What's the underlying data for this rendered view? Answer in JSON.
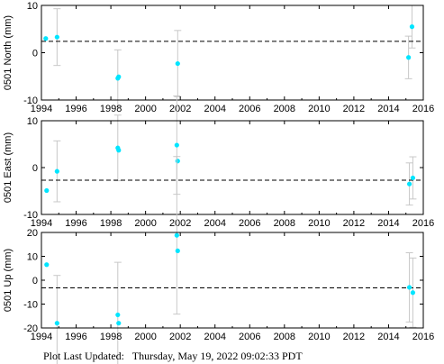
{
  "footer": {
    "label": "Plot Last Updated:",
    "timestamp": "Thursday, May 19, 2022 09:02:33 PDT"
  },
  "colors": {
    "point": "#00e5ff",
    "errorbar": "#c8c8c8",
    "reference": "#000000",
    "axis": "#000000"
  },
  "chart_data": [
    {
      "type": "scatter",
      "ylabel": "0501 North (mm)",
      "xlim": [
        1994,
        2016
      ],
      "ylim": [
        -10,
        10
      ],
      "xticks": [
        1994,
        1996,
        1998,
        2000,
        2002,
        2004,
        2006,
        2008,
        2010,
        2012,
        2014,
        2016
      ],
      "yticks": [
        -10,
        0,
        10
      ],
      "reference": 2.4,
      "points": [
        {
          "x": 1994.25,
          "y": 3.0,
          "err": 0
        },
        {
          "x": 1994.9,
          "y": 3.3,
          "err": 6.0
        },
        {
          "x": 1998.4,
          "y": -5.4,
          "err": 6.0
        },
        {
          "x": 1998.45,
          "y": -5.1,
          "err": 0
        },
        {
          "x": 2001.85,
          "y": -2.3,
          "err": 7.0
        },
        {
          "x": 2015.15,
          "y": -1.0,
          "err": 4.5
        },
        {
          "x": 2015.35,
          "y": 5.5,
          "err": 4.5
        }
      ]
    },
    {
      "type": "scatter",
      "ylabel": "0501 East (mm)",
      "xlim": [
        1994,
        2016
      ],
      "ylim": [
        -10,
        10
      ],
      "xticks": [
        1994,
        1996,
        1998,
        2000,
        2002,
        2004,
        2006,
        2008,
        2010,
        2012,
        2014,
        2016
      ],
      "yticks": [
        -10,
        0,
        10
      ],
      "reference": -2.7,
      "points": [
        {
          "x": 1994.3,
          "y": -4.9,
          "err": 0
        },
        {
          "x": 1994.9,
          "y": -0.8,
          "err": 6.5
        },
        {
          "x": 1998.4,
          "y": 4.2,
          "err": 7.0
        },
        {
          "x": 1998.45,
          "y": 3.7,
          "err": 0
        },
        {
          "x": 2001.8,
          "y": 4.8,
          "err": 10.5
        },
        {
          "x": 2001.85,
          "y": 1.4,
          "err": 0
        },
        {
          "x": 2015.2,
          "y": -3.5,
          "err": 4.5
        },
        {
          "x": 2015.4,
          "y": -2.2,
          "err": 4.5
        }
      ]
    },
    {
      "type": "scatter",
      "ylabel": "0501 Up (mm)",
      "xlim": [
        1994,
        2016
      ],
      "ylim": [
        -20,
        20
      ],
      "xticks": [
        1994,
        1996,
        1998,
        2000,
        2002,
        2004,
        2006,
        2008,
        2010,
        2012,
        2014,
        2016
      ],
      "yticks": [
        -20,
        -10,
        0,
        10,
        20
      ],
      "reference": -3.2,
      "points": [
        {
          "x": 1994.3,
          "y": 6.5,
          "err": 0
        },
        {
          "x": 1994.9,
          "y": -18.0,
          "err": 20.0
        },
        {
          "x": 1998.4,
          "y": -14.5,
          "err": 22.0
        },
        {
          "x": 1998.45,
          "y": -18.0,
          "err": 0
        },
        {
          "x": 2001.8,
          "y": 18.8,
          "err": 33.0
        },
        {
          "x": 2001.85,
          "y": 12.3,
          "err": 0
        },
        {
          "x": 2015.2,
          "y": -3.0,
          "err": 14.5
        },
        {
          "x": 2015.4,
          "y": -5.2,
          "err": 14.5
        }
      ]
    }
  ]
}
